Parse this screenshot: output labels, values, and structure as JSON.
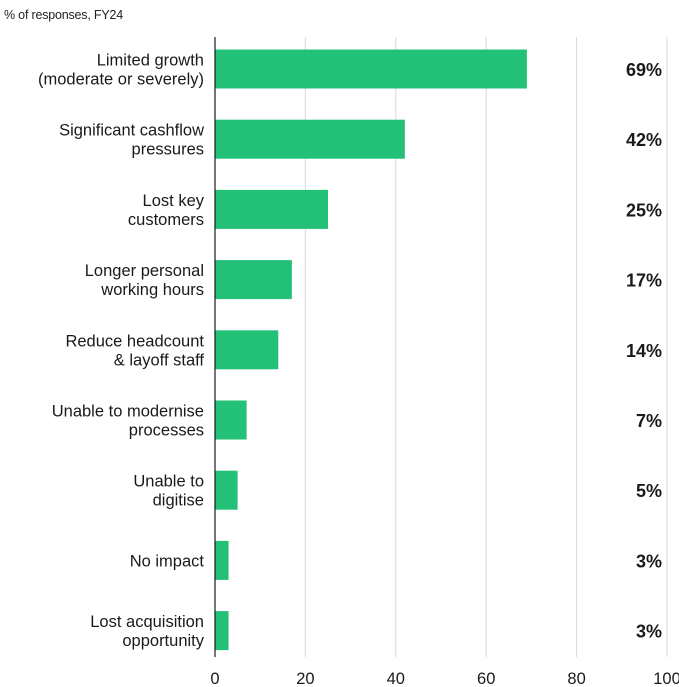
{
  "chart_data": {
    "type": "bar",
    "orientation": "horizontal",
    "subtitle": "% of responses, FY24",
    "categories": [
      [
        "Limited growth",
        "(moderate or severely)"
      ],
      [
        "Significant cashflow",
        "pressures"
      ],
      [
        "Lost key",
        "customers"
      ],
      [
        "Longer personal",
        "working hours"
      ],
      [
        "Reduce headcount",
        "& layoff staff"
      ],
      [
        "Unable to modernise",
        "processes"
      ],
      [
        "Unable to",
        "digitise"
      ],
      [
        "No impact"
      ],
      [
        "Lost acquisition",
        "opportunity"
      ]
    ],
    "values": [
      69,
      42,
      25,
      17,
      14,
      7,
      5,
      3,
      3
    ],
    "value_labels": [
      "69%",
      "42%",
      "25%",
      "17%",
      "14%",
      "7%",
      "5%",
      "3%",
      "3%"
    ],
    "xlim": [
      0,
      100
    ],
    "x_ticks": [
      0,
      20,
      40,
      60,
      80,
      100
    ],
    "x_tick_labels": [
      "0",
      "20",
      "40",
      "60",
      "80",
      "100"
    ],
    "grid": true,
    "bar_color": "#23c177"
  }
}
